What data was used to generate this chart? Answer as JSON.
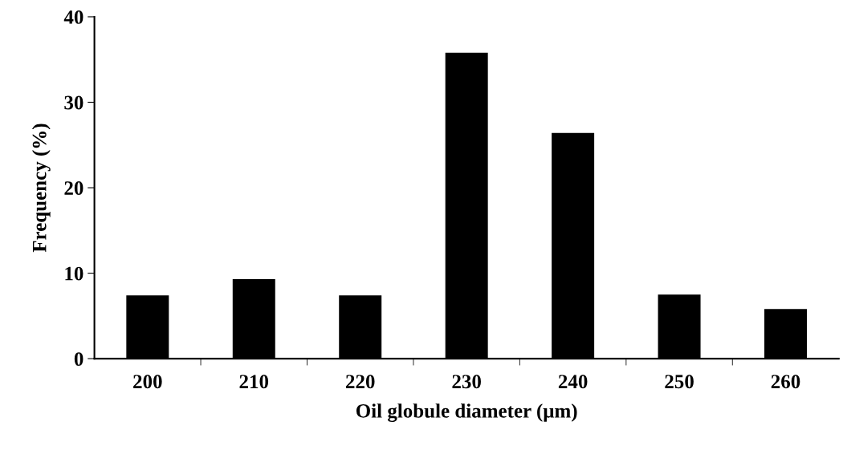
{
  "chart_data": {
    "type": "bar",
    "xlabel": "Oil globule diameter (μm)",
    "ylabel": "Frequency (%)",
    "categories": [
      "200",
      "210",
      "220",
      "230",
      "240",
      "250",
      "260"
    ],
    "values": [
      7.4,
      9.3,
      7.4,
      35.8,
      26.4,
      7.5,
      5.8
    ],
    "color": "#000000",
    "ylim": [
      0,
      40
    ],
    "yticks": [
      0,
      10,
      20,
      30,
      40
    ],
    "grid": false,
    "legend": false
  }
}
